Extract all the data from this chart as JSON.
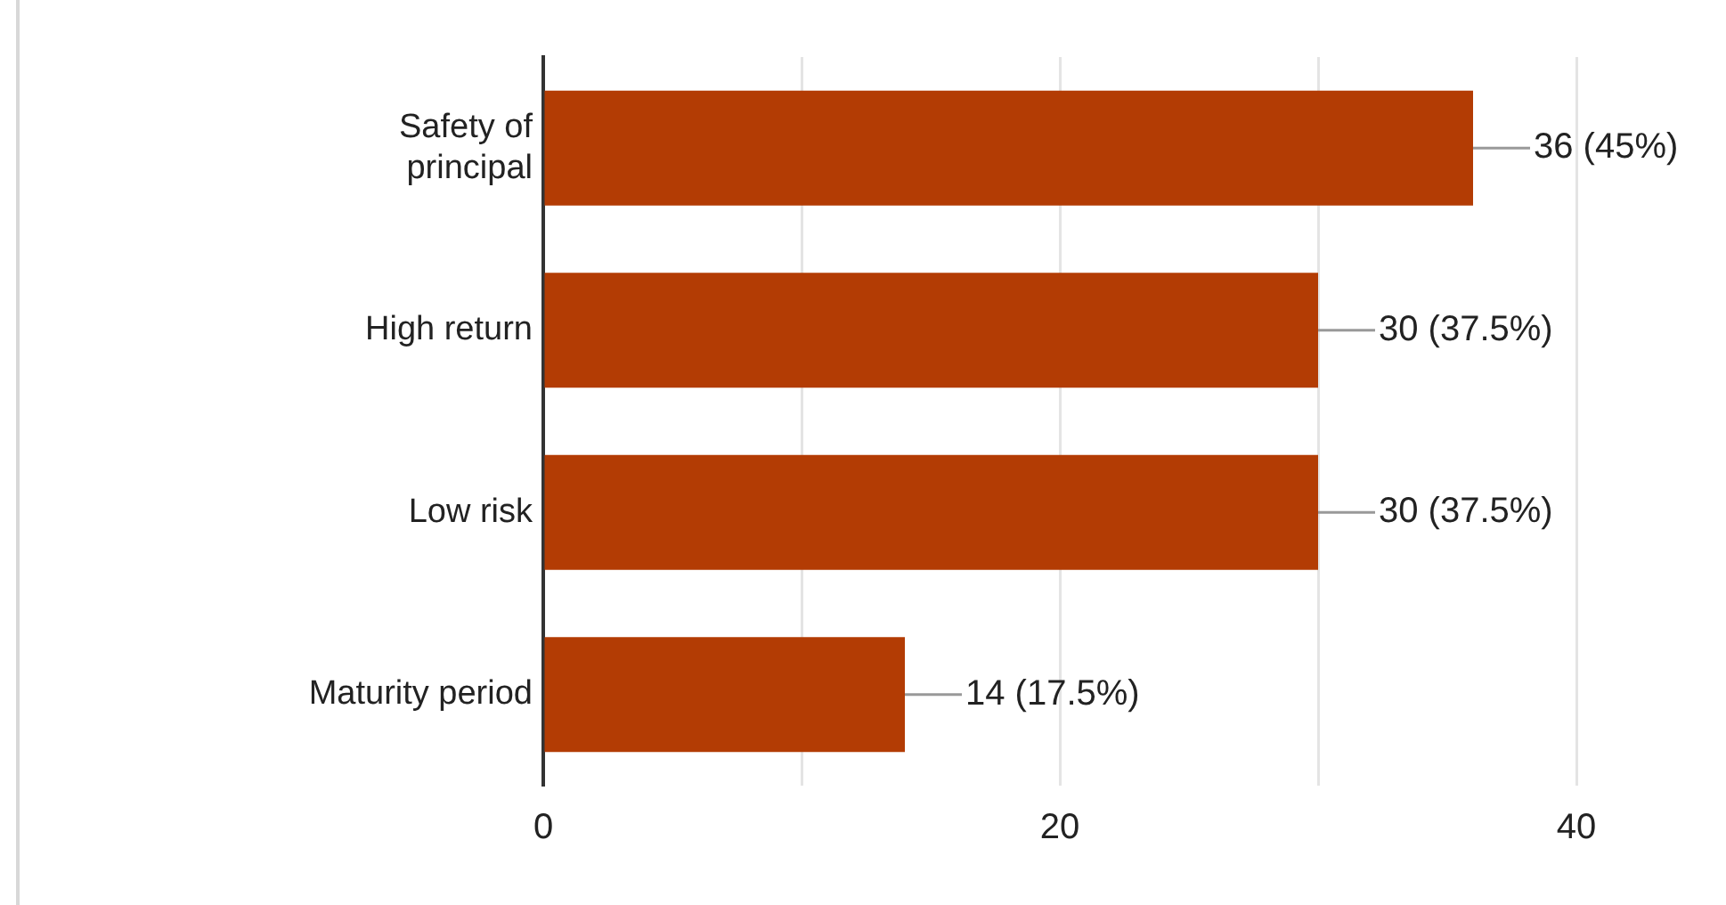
{
  "chart_data": {
    "type": "bar",
    "orientation": "horizontal",
    "categories": [
      "Safety of principal",
      "High return",
      "Low risk",
      "Maturity period"
    ],
    "values": [
      36,
      30,
      30,
      14
    ],
    "color": "#b33c04",
    "value_labels": [
      "36 (45%)",
      "30 (37.5%)",
      "30 (37.5%)",
      "14 (17.5%)"
    ],
    "xlim": [
      0,
      40
    ],
    "xticks": [
      0,
      {
        "value": 10,
        "label": null
      },
      20,
      {
        "value": 30,
        "label": null
      },
      40
    ],
    "grid": "x",
    "legend": false
  }
}
